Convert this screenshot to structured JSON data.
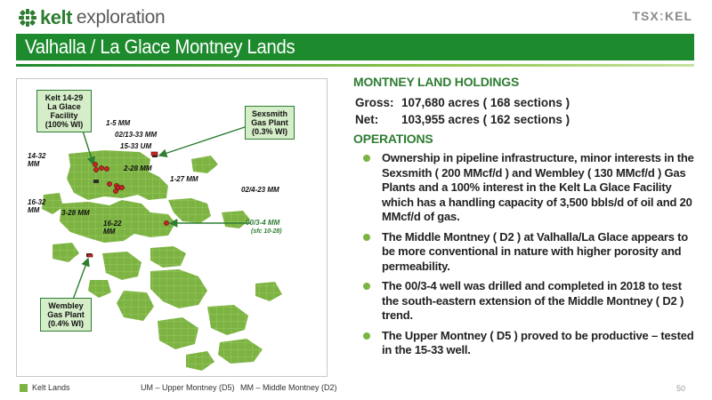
{
  "header": {
    "logo_kelt": "kelt",
    "logo_exploration": "exploration",
    "ticker": "TSX",
    "ticker_symbol": "KEL",
    "title": "Valhalla / La Glace Montney Lands"
  },
  "map": {
    "callouts": {
      "facility": "Kelt 14-29 La Glace Facility (100% WI)",
      "sexsmith": "Sexsmith Gas Plant (0.3% WI)",
      "wembley": "Wembley Gas Plant (0.4% WI)"
    },
    "well_labels": {
      "w1": "1-5 MM",
      "w2": "02/13-33 MM",
      "w3": "15-33 UM",
      "w4": "14-32 MM",
      "w5": "2-28 MM",
      "w6": "1-27 MM",
      "w7": "02/4-23 MM",
      "w8": "16-32 MM",
      "w9": "3-28 MM",
      "w10": "16-22 MM",
      "w11": "00/3-4 MM",
      "w11_note": "(sfc 10-28)"
    },
    "colors": {
      "land": "#7cb342",
      "well": "#c62828",
      "plant": "#2b2b2b",
      "arrow": "#2e7d32"
    }
  },
  "legend": {
    "kelt_lands": "Kelt Lands",
    "um": "UM – Upper Montney (D5)",
    "mm": "MM – Middle Montney (D2)"
  },
  "page_number": "50",
  "content": {
    "holdings_heading": "MONTNEY LAND HOLDINGS",
    "gross_label": "Gross:",
    "gross_value": "107,680 acres ( 168 sections )",
    "net_label": "Net:",
    "net_value": "103,955 acres ( 162 sections )",
    "operations_heading": "OPERATIONS",
    "bullets": [
      "Ownership in pipeline infrastructure, minor interests in the Sexsmith ( 200 MMcf/d ) and Wembley ( 130 MMcf/d ) Gas Plants and a 100% interest in the Kelt La Glace Facility which has a handling capacity of 3,500 bbls/d of oil and 20 MMcf/d of gas.",
      "The Middle Montney ( D2 ) at Valhalla/La Glace appears to be more conventional in nature with higher porosity  and permeability.",
      "The 00/3-4 well was drilled and completed in 2018 to test the south-eastern extension of the Middle Montney ( D2 ) trend.",
      "The Upper Montney ( D5 ) proved to be productive – tested in the 15-33 well."
    ]
  }
}
